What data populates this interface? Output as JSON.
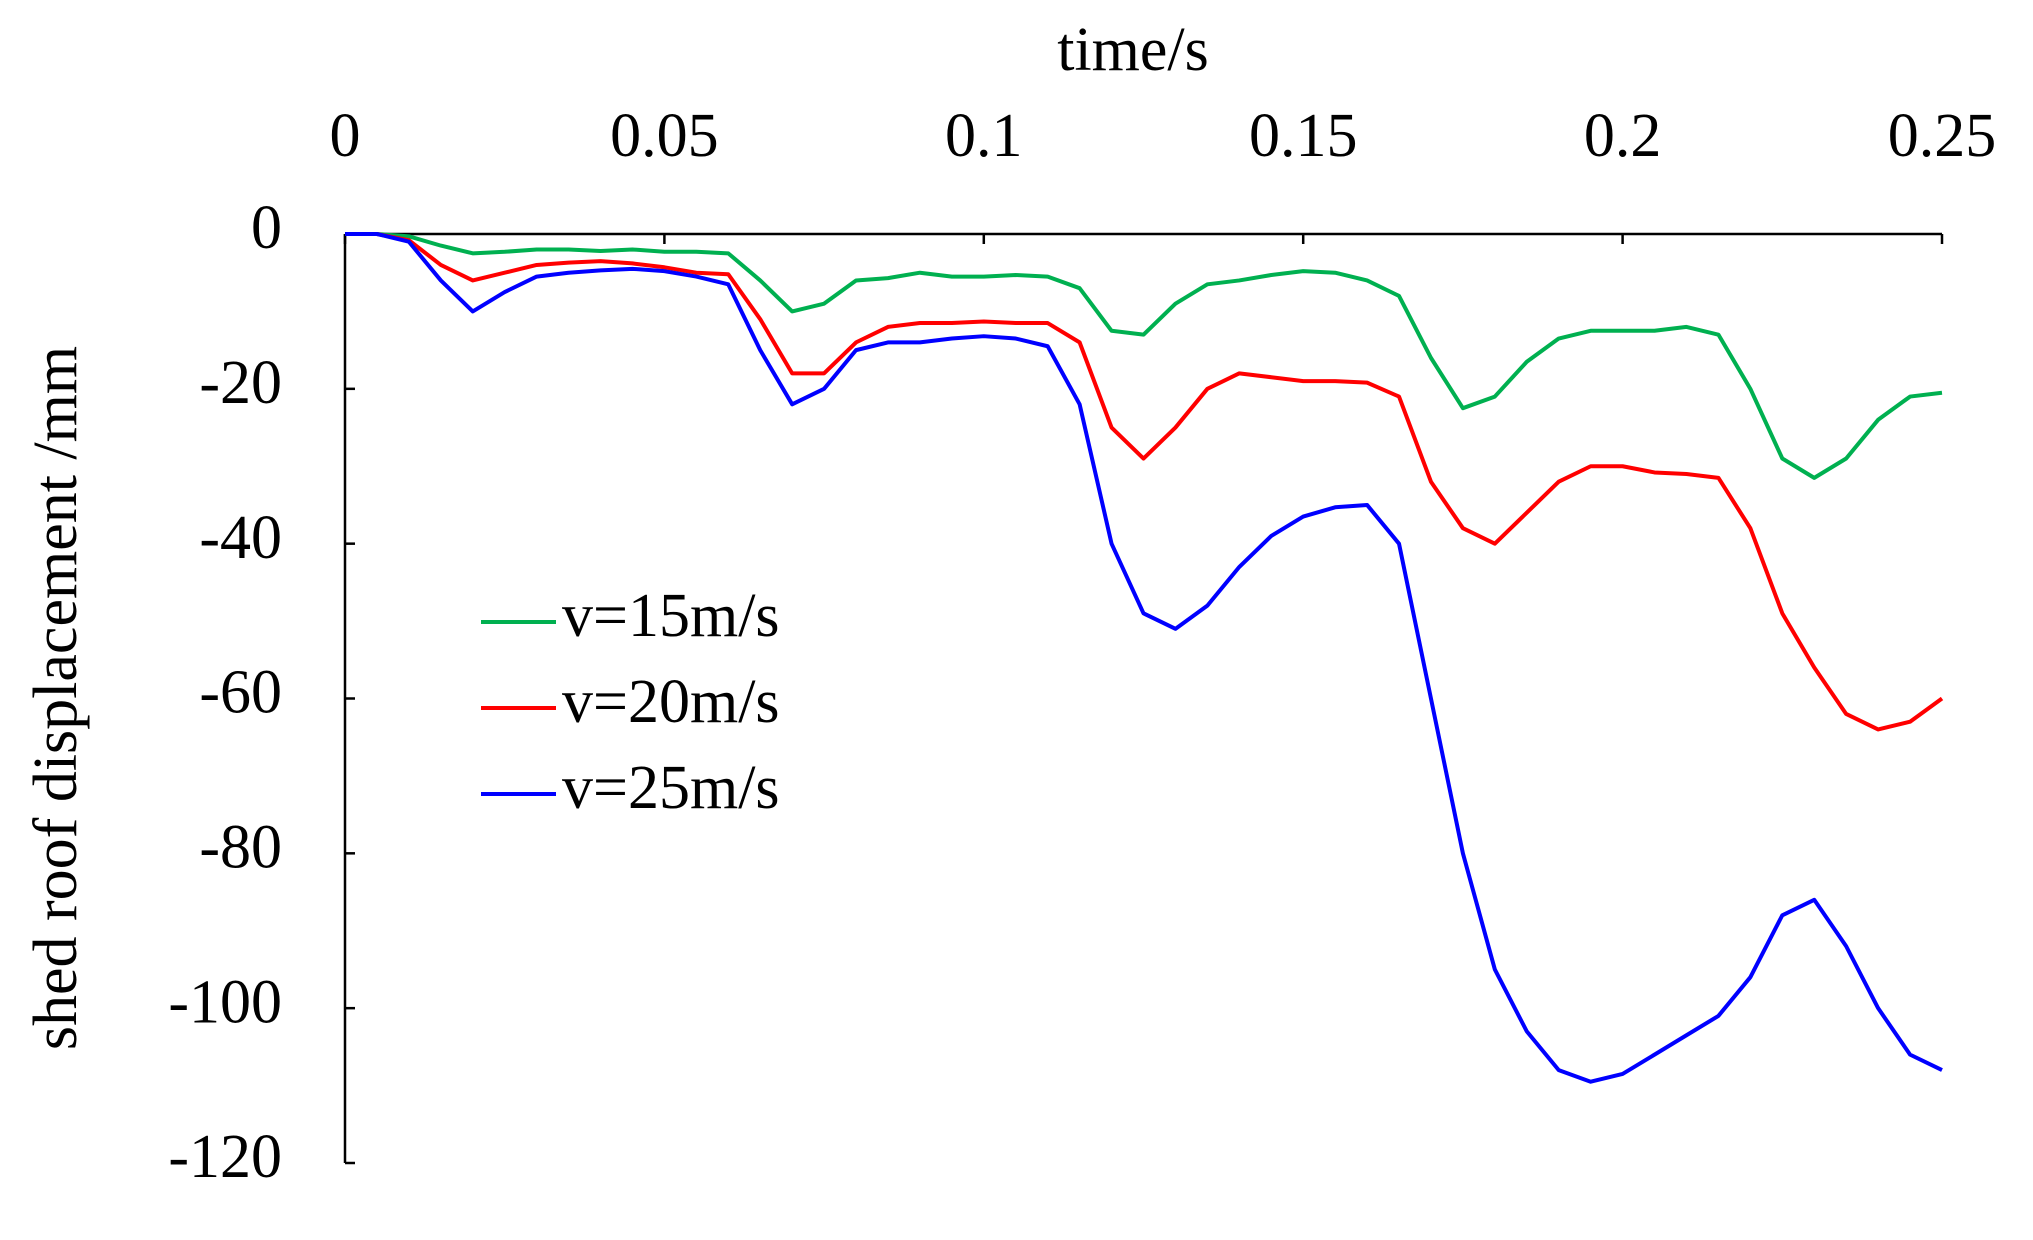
{
  "chart_data": {
    "type": "line",
    "xlabel": "time/s",
    "ylabel": "shed roof displacement /mm",
    "x": [
      0,
      0.005,
      0.01,
      0.015,
      0.02,
      0.025,
      0.03,
      0.035,
      0.04,
      0.045,
      0.05,
      0.055,
      0.06,
      0.065,
      0.07,
      0.075,
      0.08,
      0.085,
      0.09,
      0.095,
      0.1,
      0.105,
      0.11,
      0.115,
      0.12,
      0.125,
      0.13,
      0.135,
      0.14,
      0.145,
      0.15,
      0.155,
      0.16,
      0.165,
      0.17,
      0.175,
      0.18,
      0.185,
      0.19,
      0.195,
      0.2,
      0.205,
      0.21,
      0.215,
      0.22,
      0.225,
      0.23,
      0.235,
      0.24,
      0.245,
      0.25
    ],
    "series": [
      {
        "name": "v=15m/s",
        "color": "#00b050",
        "values": [
          0,
          0,
          -0.3,
          -1.5,
          -2.5,
          -2.3,
          -2,
          -2,
          -2.2,
          -2,
          -2.3,
          -2.3,
          -2.5,
          -6,
          -10,
          -9,
          -6,
          -5.7,
          -5,
          -5.5,
          -5.5,
          -5.3,
          -5.5,
          -7,
          -12.5,
          -13,
          -9,
          -6.5,
          -6,
          -5.3,
          -4.8,
          -5,
          -6,
          -8,
          -16,
          -22.5,
          -21,
          -16.5,
          -13.5,
          -12.5,
          -12.5,
          -12.5,
          -12,
          -13,
          -20,
          -29,
          -31.5,
          -29,
          -24,
          -21,
          -20.5
        ]
      },
      {
        "name": "v=20m/s",
        "color": "#ff0000",
        "values": [
          0,
          0,
          -0.8,
          -4,
          -6,
          -5,
          -4,
          -3.7,
          -3.5,
          -3.8,
          -4.3,
          -5,
          -5.2,
          -11,
          -18,
          -18,
          -14,
          -12,
          -11.5,
          -11.5,
          -11.3,
          -11.5,
          -11.5,
          -14,
          -25,
          -29,
          -25,
          -20,
          -18,
          -18.5,
          -19,
          -19,
          -19.2,
          -21,
          -32,
          -38,
          -40,
          -36,
          -32,
          -30,
          -30,
          -30.8,
          -31,
          -31.5,
          -38,
          -49,
          -56,
          -62,
          -64,
          -63,
          -60
        ]
      },
      {
        "name": "v=25m/s",
        "color": "#0000ff",
        "values": [
          0,
          0,
          -1,
          -6,
          -10,
          -7.5,
          -5.5,
          -5,
          -4.7,
          -4.5,
          -4.8,
          -5.5,
          -6.5,
          -15,
          -22,
          -20,
          -15,
          -14,
          -14,
          -13.5,
          -13.2,
          -13.5,
          -14.5,
          -22,
          -40,
          -49,
          -51,
          -48,
          -43,
          -39,
          -36.5,
          -35.3,
          -35,
          -40,
          -60,
          -80,
          -95,
          -103,
          -108,
          -109.5,
          -108.5,
          -106,
          -103.5,
          -101,
          -96,
          -88,
          -86,
          -92,
          -100,
          -106,
          -108
        ]
      }
    ],
    "xlim": [
      0,
      0.25
    ],
    "xticks": [
      0,
      0.05,
      0.1,
      0.15,
      0.2,
      0.25
    ],
    "ylim": [
      -120,
      0
    ],
    "yticks": [
      0,
      -20,
      -40,
      -60,
      -80,
      -100,
      -120
    ],
    "grid": false,
    "legend": "center-left"
  }
}
